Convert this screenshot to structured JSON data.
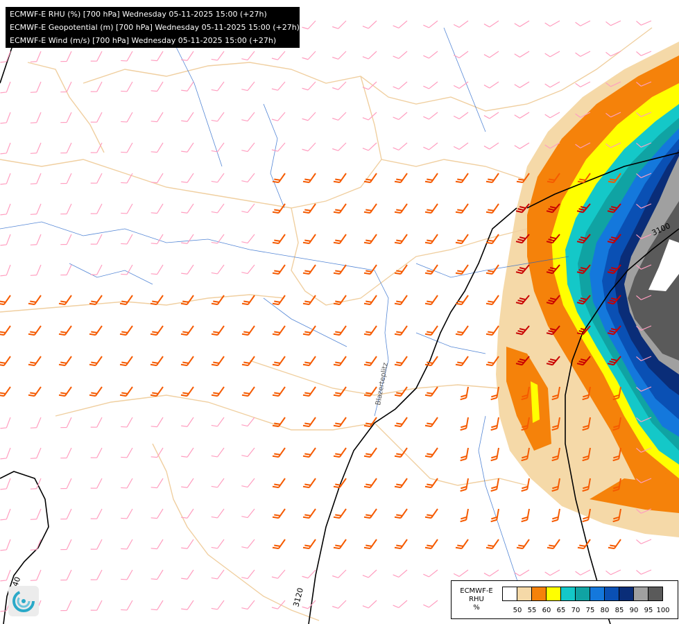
{
  "titles": [
    "ECMWF-E RHU (%) [700 hPa] Wednesday 05-11-2025 15:00 (+27h)",
    "ECMWF-E Geopotential (m) [700 hPa] Wednesday 05-11-2025 15:00 (+27h)",
    "ECMWF-E Wind (m/s) [700 hPa] Wednesday 05-11-2025 15:00 (+27h)"
  ],
  "legend": {
    "model": "ECMWF-E",
    "variable": "RHU",
    "unit": "%",
    "ticks": [
      "50",
      "55",
      "60",
      "65",
      "70",
      "75",
      "80",
      "85",
      "90",
      "95",
      "100"
    ],
    "colors": [
      "#ffffff",
      "#f5d9a8",
      "#f5820a",
      "#ffff00",
      "#14c8c8",
      "#10a3a3",
      "#1478dc",
      "#0a50b4",
      "#0a2d78",
      "#a0a0a0",
      "#5a5a5a"
    ]
  },
  "contours": [
    {
      "value": "3100",
      "label": "3100"
    },
    {
      "value": "3120",
      "label": "3120"
    },
    {
      "value": "3140",
      "label": "3140"
    }
  ],
  "place_label": "Blazerteplitz",
  "logo": "ecmwf-swirl-icon",
  "colors": {
    "wind_light": "#ff9ec0",
    "wind_medium": "#f55a00",
    "wind_strong": "#c80000",
    "borders": "#f0cfa0",
    "rivers": "#1a5ec8",
    "contour": "#000000"
  }
}
